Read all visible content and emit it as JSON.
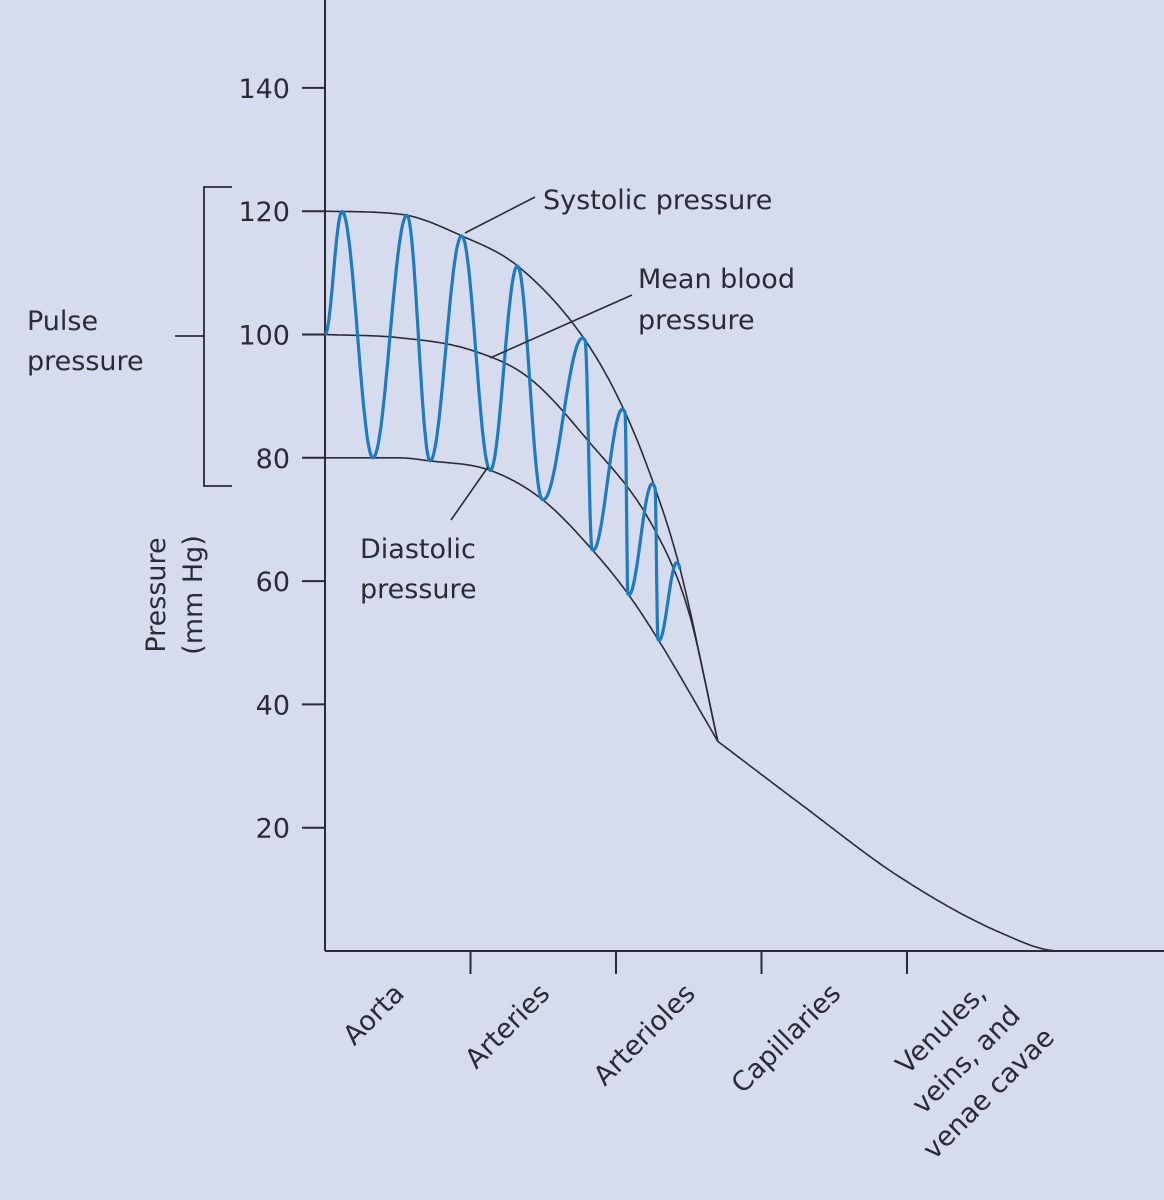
{
  "chart_data": {
    "type": "line",
    "xlabel": "",
    "ylabel": [
      "Pressure",
      "(mm Hg)"
    ],
    "ylim": [
      0,
      154
    ],
    "xlim": [
      0,
      5.77
    ],
    "grid": false,
    "y_ticks": [
      20,
      40,
      60,
      80,
      100,
      120,
      140
    ],
    "categories": [
      {
        "label": [
          "Aorta"
        ]
      },
      {
        "label": [
          "Arteries"
        ]
      },
      {
        "label": [
          "Arterioles"
        ]
      },
      {
        "label": [
          "Capillaries"
        ]
      },
      {
        "label": [
          "Venules,",
          "veins, and",
          "venae cavae"
        ]
      }
    ],
    "x_ticks": [
      1,
      2,
      3,
      4
    ],
    "series": [
      {
        "key": "systolic",
        "points": [
          [
            0,
            120
          ],
          [
            0.52,
            119.5
          ],
          [
            0.94,
            116
          ],
          [
            1.33,
            111
          ],
          [
            1.79,
            99
          ],
          [
            2.06,
            87.5
          ],
          [
            2.27,
            75
          ],
          [
            2.44,
            62
          ],
          [
            2.7,
            34
          ]
        ]
      },
      {
        "key": "mean",
        "points": [
          [
            0,
            100
          ],
          [
            0.5,
            99.5
          ],
          [
            1.0,
            97.5
          ],
          [
            1.4,
            93
          ],
          [
            1.8,
            83
          ],
          [
            2.25,
            69
          ],
          [
            2.5,
            55
          ],
          [
            2.7,
            34
          ]
        ]
      },
      {
        "key": "diastolic",
        "points": [
          [
            0,
            80
          ],
          [
            0.5,
            80
          ],
          [
            0.72,
            79.5
          ],
          [
            1.13,
            78
          ],
          [
            1.49,
            73.3
          ],
          [
            1.84,
            65
          ],
          [
            2.08,
            58
          ],
          [
            2.29,
            50.5
          ],
          [
            2.7,
            34
          ]
        ]
      },
      {
        "key": "combined",
        "points": [
          [
            2.7,
            34
          ],
          [
            3.26,
            24
          ],
          [
            3.95,
            12
          ],
          [
            4.64,
            3
          ],
          [
            5.05,
            0
          ],
          [
            5.77,
            0
          ]
        ]
      }
    ],
    "pulse_wave": {
      "color": "#1f7bbf",
      "start_x": 0,
      "peaks_x": [
        0.117,
        0.564,
        0.942,
        1.326,
        1.787,
        2.062,
        2.268,
        2.44
      ],
      "troughs_x": [
        0.33,
        0.722,
        1.134,
        1.491,
        1.835,
        2.082,
        2.289
      ]
    },
    "annotations": {
      "systolic": [
        "Systolic pressure"
      ],
      "mean": [
        "Mean blood",
        "pressure"
      ],
      "diastolic": [
        "Diastolic",
        "pressure"
      ],
      "pulse_pressure": [
        "Pulse",
        "pressure"
      ]
    },
    "colors": {
      "background": "#d6dcee",
      "lines": "#2b2b35",
      "wave": "#1f7bbf"
    }
  }
}
